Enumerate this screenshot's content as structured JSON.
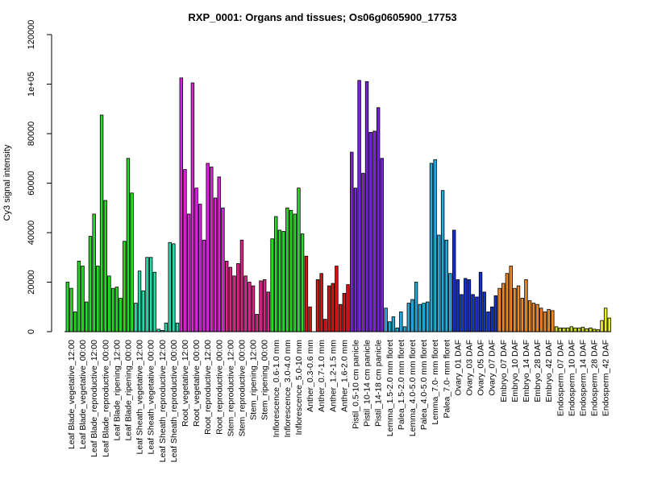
{
  "chart_data": {
    "type": "bar",
    "title": "RXP_0001: Organs and tissues; Os06g0605900_17753",
    "xlabel": "",
    "ylabel": "Cy3 signal intensity",
    "ylim": [
      0,
      120000
    ],
    "y_ticks": [
      0,
      20000,
      40000,
      60000,
      80000,
      100000,
      120000
    ],
    "y_tick_labels": [
      "0",
      "20000",
      "40000",
      "60000",
      "80000",
      "1e+05",
      "120000"
    ],
    "grid": false,
    "legend": "none",
    "groups": [
      {
        "label": "Leaf Blade_vegetative_12:00",
        "color": "#22dd22",
        "values": [
          20000,
          17500,
          8000
        ]
      },
      {
        "label": "Leaf Blade_vegetative_00:00",
        "color": "#22dd22",
        "values": [
          28500,
          26500,
          12000
        ]
      },
      {
        "label": "Leaf Blade_reproductive_12:00",
        "color": "#22dd22",
        "values": [
          38500,
          47500,
          26500
        ]
      },
      {
        "label": "Leaf Blade_reproductive_00:00",
        "color": "#22dd22",
        "values": [
          87500,
          53000,
          22500
        ]
      },
      {
        "label": "Leaf Blade_ripening_12:00",
        "color": "#22dd22",
        "values": [
          17500,
          18000,
          13500
        ]
      },
      {
        "label": "Leaf Blade_ripening_00:00",
        "color": "#22dd22",
        "values": [
          36500,
          70000,
          56000
        ]
      },
      {
        "label": "Leaf Sheath_vegetative_12:00",
        "color": "#22ddaa",
        "values": [
          11500,
          24500,
          16500
        ]
      },
      {
        "label": "Leaf Sheath_vegetative_00:00",
        "color": "#22ddaa",
        "values": [
          30000,
          30000,
          24000
        ]
      },
      {
        "label": "Leaf Sheath_reproductive_12:00",
        "color": "#22ddaa",
        "values": [
          1000,
          500,
          3500
        ]
      },
      {
        "label": "Leaf Sheath_reproductive_00:00",
        "color": "#22ddaa",
        "values": [
          36000,
          35500,
          3500
        ]
      },
      {
        "label": "Root_vegetative_12:00",
        "color": "#dd22dd",
        "values": [
          102500,
          65500,
          47500
        ]
      },
      {
        "label": "Root_vegetative_00:00",
        "color": "#dd22dd",
        "values": [
          100500,
          58000,
          51500
        ]
      },
      {
        "label": "Root_reproductive_12:00",
        "color": "#dd22dd",
        "values": [
          37000,
          68000,
          66500
        ]
      },
      {
        "label": "Root_reproductive_00:00",
        "color": "#dd22dd",
        "values": [
          54000,
          62500,
          50000
        ]
      },
      {
        "label": "Stem_reproductive_12:00",
        "color": "#dd2288",
        "values": [
          28500,
          26000,
          22500
        ]
      },
      {
        "label": "Stem_reproductive_00:00",
        "color": "#dd2288",
        "values": [
          27500,
          37000,
          22500
        ]
      },
      {
        "label": "Stem_ripening_12:00",
        "color": "#dd2288",
        "values": [
          20000,
          18500,
          7000
        ]
      },
      {
        "label": "Stem_ripening_00:00",
        "color": "#dd2288",
        "values": [
          20500,
          21000,
          16000
        ]
      },
      {
        "label": "Inflorescence_0.6-1.0 mm",
        "color": "#22dd22",
        "values": [
          37500,
          46500,
          41000
        ]
      },
      {
        "label": "Inflorescence_3.0-4.0 mm",
        "color": "#22dd22",
        "values": [
          40500,
          50000,
          49000
        ]
      },
      {
        "label": "Inflorescence_5.0-10 mm",
        "color": "#22dd22",
        "values": [
          47500,
          58000,
          39500
        ]
      },
      {
        "label": "Anther_0.3-0.6 mm",
        "color": "#dd1111",
        "values": [
          30500,
          10000,
          0
        ]
      },
      {
        "label": "Anther_0.7-1.0 mm",
        "color": "#dd1111",
        "values": [
          21000,
          23500,
          5000
        ]
      },
      {
        "label": "Anther_1.2-1.5 mm",
        "color": "#dd1111",
        "values": [
          18500,
          19500,
          26500
        ]
      },
      {
        "label": "Anther_1.6-2.0 mm",
        "color": "#dd1111",
        "values": [
          11000,
          15500,
          19000
        ]
      },
      {
        "label": "Pistil_0.5-10 cm panicle",
        "color": "#7a22dd",
        "values": [
          72500,
          58000,
          101500
        ]
      },
      {
        "label": "Pistil_10-14 cm panicle",
        "color": "#7a22dd",
        "values": [
          64000,
          101000,
          80500
        ]
      },
      {
        "label": "Pistil_14-18 cm panicle",
        "color": "#7a22dd",
        "values": [
          81000,
          90500,
          70000
        ]
      },
      {
        "label": "Lemma_1.5-2.0 mm floret",
        "color": "#22aadd",
        "values": [
          9500,
          4000,
          6000
        ]
      },
      {
        "label": "Palea_1.5-2.0 mm floret",
        "color": "#22aadd",
        "values": [
          1500,
          8000,
          2000
        ]
      },
      {
        "label": "Lemma_4.0-5.0 mm floret",
        "color": "#22aadd",
        "values": [
          11500,
          13000,
          20000
        ]
      },
      {
        "label": "Palea_4.0-5.0 mm floret",
        "color": "#22aadd",
        "values": [
          11000,
          11500,
          12000
        ]
      },
      {
        "label": "Lemma_7.0- mm floret",
        "color": "#22aadd",
        "values": [
          68000,
          69500,
          39000
        ]
      },
      {
        "label": "Palea_7.0- mm floret",
        "color": "#22aadd",
        "values": [
          57000,
          37000,
          23500
        ]
      },
      {
        "label": "Ovary_01 DAF",
        "color": "#1133cc",
        "values": [
          41000,
          21000,
          15000
        ]
      },
      {
        "label": "Ovary_03 DAF",
        "color": "#1133cc",
        "values": [
          21500,
          21000,
          15000
        ]
      },
      {
        "label": "Ovary_05 DAF",
        "color": "#1133cc",
        "values": [
          14000,
          24000,
          16000
        ]
      },
      {
        "label": "Ovary_07 DAF",
        "color": "#1133cc",
        "values": [
          8000,
          10000,
          14500
        ]
      },
      {
        "label": "Embryo_07 DAF",
        "color": "#ee8822",
        "values": [
          17500,
          19500,
          23500
        ]
      },
      {
        "label": "Embryo_10 DAF",
        "color": "#ee8822",
        "values": [
          26500,
          17500,
          18500
        ]
      },
      {
        "label": "Embryo_14 DAF",
        "color": "#ee8822",
        "values": [
          13500,
          21000,
          12500
        ]
      },
      {
        "label": "Embryo_28 DAF",
        "color": "#ee8822",
        "values": [
          11500,
          11000,
          9500
        ]
      },
      {
        "label": "Embryo_42 DAF",
        "color": "#ee8822",
        "values": [
          8000,
          9000,
          8500
        ]
      },
      {
        "label": "Endosperm_07 DAF",
        "color": "#ccdd22",
        "values": [
          2000,
          1500,
          1500
        ]
      },
      {
        "label": "Endosperm_10 DAF",
        "color": "#ccdd22",
        "values": [
          1500,
          2000,
          1500
        ]
      },
      {
        "label": "Endosperm_14 DAF",
        "color": "#ccdd22",
        "values": [
          1500,
          1800,
          1200
        ]
      },
      {
        "label": "Endosperm_28 DAF",
        "color": "#ccdd22",
        "values": [
          1500,
          1000,
          800
        ]
      },
      {
        "label": "Endosperm_42 DAF",
        "color": "#eeee22",
        "values": [
          4500,
          9500,
          5500
        ]
      }
    ]
  }
}
